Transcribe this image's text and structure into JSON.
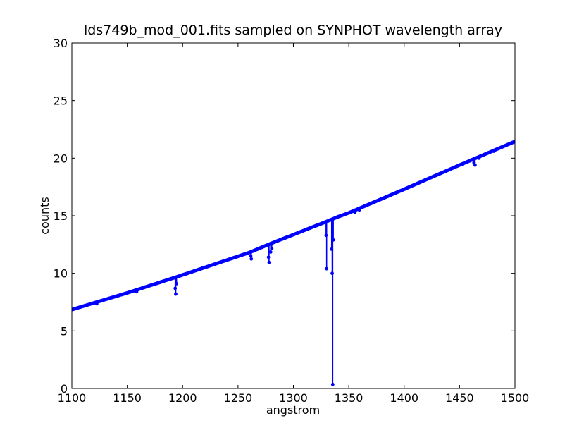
{
  "chart_data": {
    "type": "line",
    "title": "lds749b_mod_001.fits sampled on SYNPHOT wavelength array",
    "xlabel": "angstrom",
    "ylabel": "counts",
    "xlim": [
      1100,
      1500
    ],
    "ylim": [
      0,
      30
    ],
    "xticks": [
      1100,
      1150,
      1200,
      1250,
      1300,
      1350,
      1400,
      1450,
      1500
    ],
    "yticks": [
      0,
      5,
      10,
      15,
      20,
      25,
      30
    ],
    "xtick_labels": [
      "1100",
      "1150",
      "1200",
      "1250",
      "1300",
      "1350",
      "1400",
      "1450",
      "1500"
    ],
    "ytick_labels": [
      "0",
      "5",
      "10",
      "15",
      "20",
      "25",
      "30"
    ],
    "grid": false,
    "legend": "none",
    "series_color": "#0000ff",
    "marker": "dot",
    "continuum": [
      [
        1100,
        6.85
      ],
      [
        1150,
        8.3
      ],
      [
        1195,
        9.7
      ],
      [
        1260,
        11.8
      ],
      [
        1280,
        12.6
      ],
      [
        1330,
        14.5
      ],
      [
        1340,
        14.9
      ],
      [
        1350,
        15.25
      ],
      [
        1400,
        17.3
      ],
      [
        1450,
        19.4
      ],
      [
        1500,
        21.45
      ]
    ],
    "absorption_lines": [
      {
        "x": 1122.5,
        "y": 7.35
      },
      {
        "x": 1158.5,
        "y": 8.4
      },
      {
        "x": 1193.3,
        "y": 8.7
      },
      {
        "x": 1193.8,
        "y": 8.2
      },
      {
        "x": 1194.5,
        "y": 9.1
      },
      {
        "x": 1261.5,
        "y": 11.5
      },
      {
        "x": 1262.0,
        "y": 11.25
      },
      {
        "x": 1277.5,
        "y": 11.4
      },
      {
        "x": 1278.0,
        "y": 10.95
      },
      {
        "x": 1279.5,
        "y": 11.85
      },
      {
        "x": 1280.5,
        "y": 12.15
      },
      {
        "x": 1329.5,
        "y": 13.3
      },
      {
        "x": 1330.0,
        "y": 10.4
      },
      {
        "x": 1334.5,
        "y": 12.1
      },
      {
        "x": 1335.0,
        "y": 10.0
      },
      {
        "x": 1335.5,
        "y": 0.35
      },
      {
        "x": 1336.0,
        "y": 12.9
      },
      {
        "x": 1355.5,
        "y": 15.3
      },
      {
        "x": 1359.5,
        "y": 15.5
      },
      {
        "x": 1463.0,
        "y": 19.6
      },
      {
        "x": 1464.0,
        "y": 19.4
      },
      {
        "x": 1467.5,
        "y": 20.0
      },
      {
        "x": 1481.0,
        "y": 20.6
      }
    ]
  }
}
